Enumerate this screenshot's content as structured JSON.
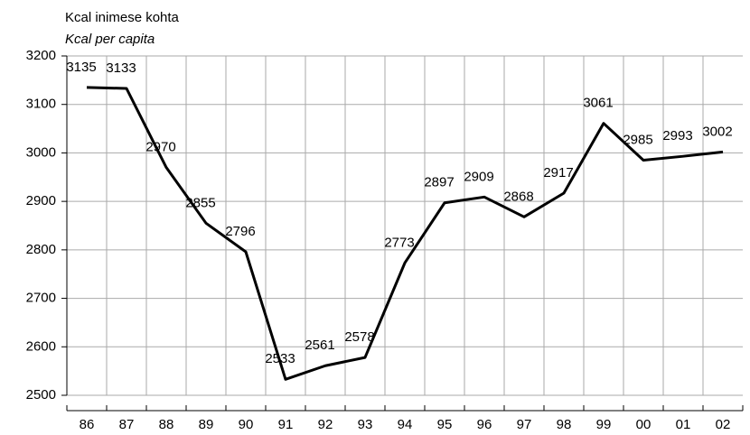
{
  "chart_data": {
    "type": "line",
    "title": "Kcal inimese kohta",
    "subtitle": "Kcal per capita",
    "categories": [
      "86",
      "87",
      "88",
      "89",
      "90",
      "91",
      "92",
      "93",
      "94",
      "95",
      "96",
      "97",
      "98",
      "99",
      "00",
      "01",
      "02"
    ],
    "values": [
      3135,
      3133,
      2970,
      2855,
      2796,
      2533,
      2561,
      2578,
      2773,
      2897,
      2909,
      2868,
      2917,
      3061,
      2985,
      2993,
      3002
    ],
    "color": "#000000",
    "ylim": [
      2500,
      3200
    ],
    "yticks": [
      2500,
      2600,
      2700,
      2800,
      2900,
      3000,
      3100,
      3200
    ],
    "grid": true
  }
}
